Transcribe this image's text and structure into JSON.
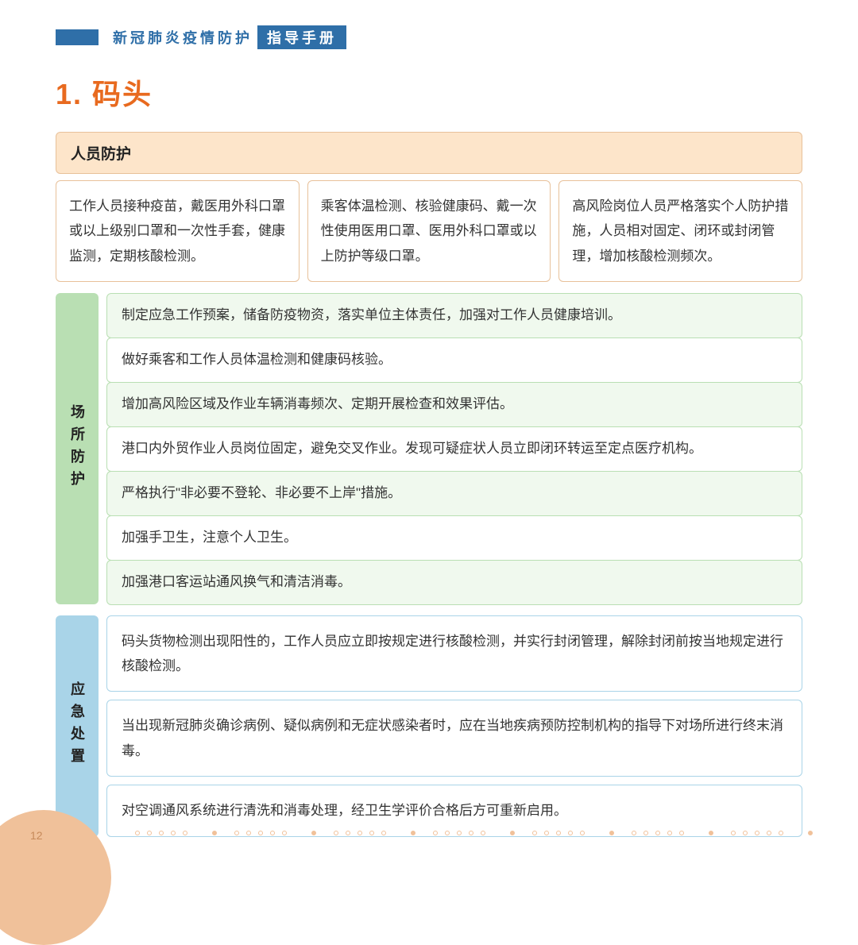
{
  "header": {
    "left_text": "新冠肺炎疫情防护",
    "badge_text": "指导手册"
  },
  "title": "1. 码头",
  "section_personnel": {
    "heading": "人员防护",
    "columns": [
      "工作人员接种疫苗，戴医用外科口罩或以上级别口罩和一次性手套，健康监测，定期核酸检测。",
      "乘客体温检测、核验健康码、戴一次性使用医用口罩、医用外科口罩或以上防护等级口罩。",
      "高风险岗位人员严格落实个人防护措施，人员相对固定、闭环或封闭管理，增加核酸检测频次。"
    ]
  },
  "section_site": {
    "label": "场所防护",
    "rows": [
      "制定应急工作预案，储备防疫物资，落实单位主体责任，加强对工作人员健康培训。",
      "做好乘客和工作人员体温检测和健康码核验。",
      "增加高风险区域及作业车辆消毒频次、定期开展检查和效果评估。",
      "港口内外贸作业人员岗位固定，避免交叉作业。发现可疑症状人员立即闭环转运至定点医疗机构。",
      "严格执行\"非必要不登轮、非必要不上岸\"措施。",
      "加强手卫生，注意个人卫生。",
      "加强港口客运站通风换气和清洁消毒。"
    ]
  },
  "section_emergency": {
    "label": "应急处置",
    "rows": [
      "码头货物检测出现阳性的，工作人员应立即按规定进行核酸检测，并实行封闭管理，解除封闭前按当地规定进行核酸检测。",
      "当出现新冠肺炎确诊病例、疑似病例和无症状感染者时，应在当地疾病预防控制机构的指导下对场所进行终末消毒。",
      "对空调通风系统进行清洗和消毒处理，经卫生学评价合格后方可重新启用。"
    ]
  },
  "page_number": "12",
  "colors": {
    "accent_blue": "#2f6fa8",
    "title_orange": "#e86a1f",
    "peach_bg": "#fde5ca",
    "peach_border": "#e8c19a",
    "green_label": "#b9dfb3",
    "green_row_bg": "#f0f9ee",
    "blue_label": "#a9d4e8",
    "footer_circle": "#f0c19a"
  }
}
